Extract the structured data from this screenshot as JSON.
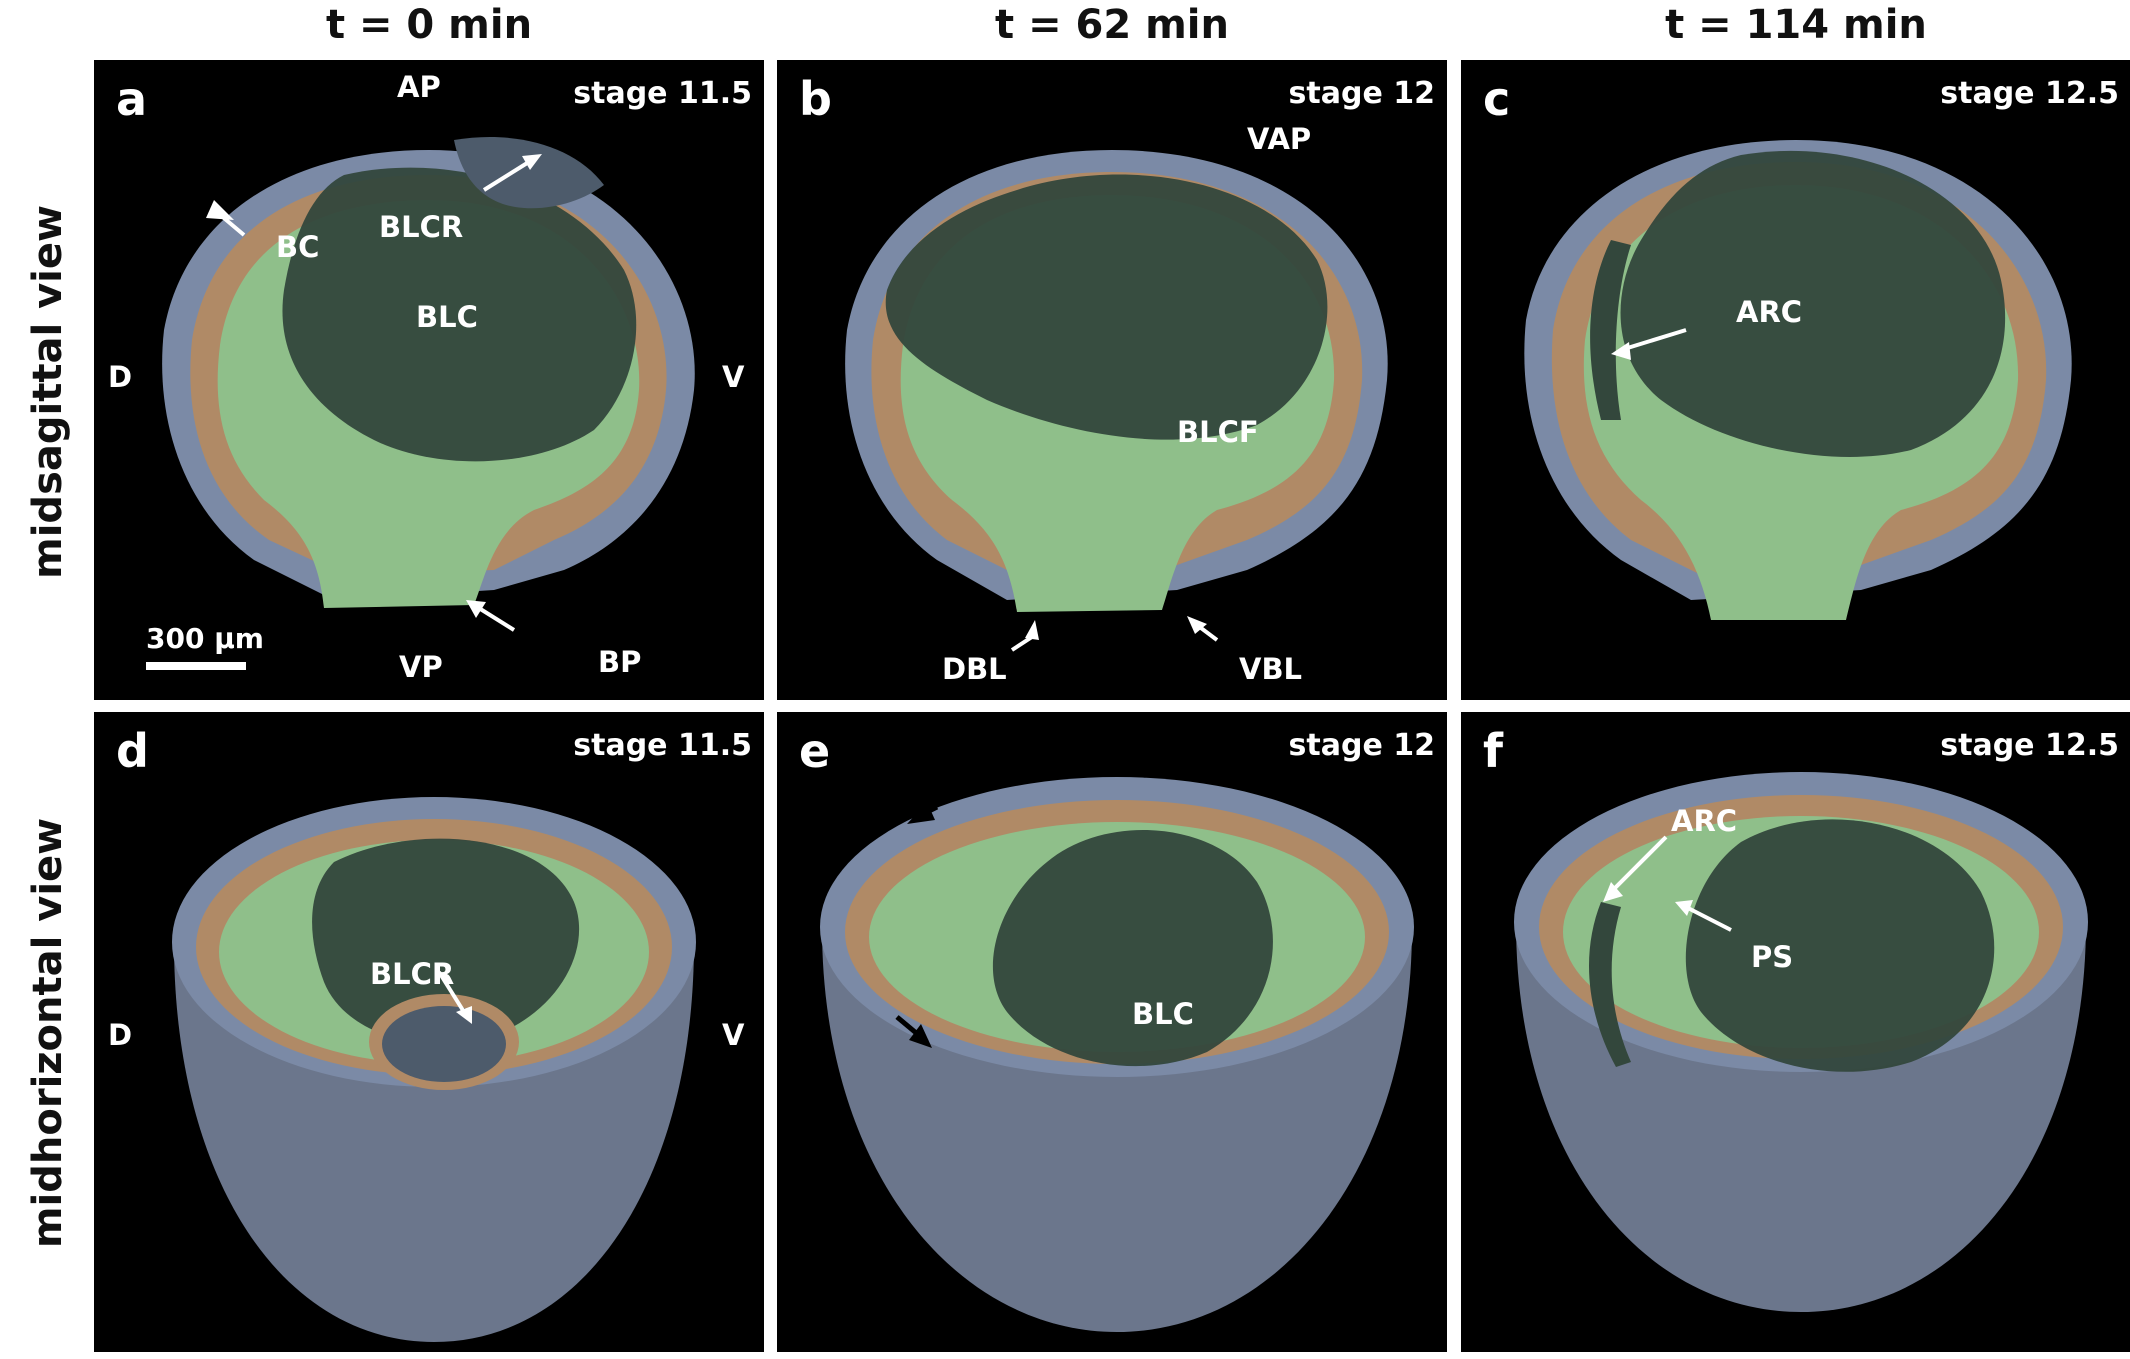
{
  "columns": [
    "t = 0 min",
    "t = 62 min",
    "t = 114 min"
  ],
  "rows": [
    "midsagittal view",
    "midhorizontal view"
  ],
  "panels": {
    "a": {
      "letter": "a",
      "stage": "stage 11.5",
      "labels": {
        "AP": "AP",
        "BC": "BC",
        "BLCR": "BLCR",
        "BLC": "BLC",
        "D": "D",
        "V": "V",
        "VP": "VP",
        "BP": "BP"
      },
      "scale": "300 μm"
    },
    "b": {
      "letter": "b",
      "stage": "stage 12",
      "labels": {
        "VAP": "VAP",
        "BLCF": "BLCF",
        "DBL": "DBL",
        "VBL": "VBL"
      }
    },
    "c": {
      "letter": "c",
      "stage": "stage 12.5",
      "labels": {
        "ARC": "ARC"
      }
    },
    "d": {
      "letter": "d",
      "stage": "stage 11.5",
      "labels": {
        "BLCR": "BLCR",
        "D": "D",
        "V": "V"
      }
    },
    "e": {
      "letter": "e",
      "stage": "stage 12",
      "labels": {
        "BLC": "BLC"
      }
    },
    "f": {
      "letter": "f",
      "stage": "stage 12.5",
      "labels": {
        "ARC": "ARC",
        "PS": "PS"
      }
    }
  },
  "colors": {
    "ectoderm": "#7b8aa6",
    "mesoderm": "#b08a66",
    "endoderm": "#8fbf8a",
    "blastocoel": "#33473c",
    "roof": "#4d5b6b"
  }
}
